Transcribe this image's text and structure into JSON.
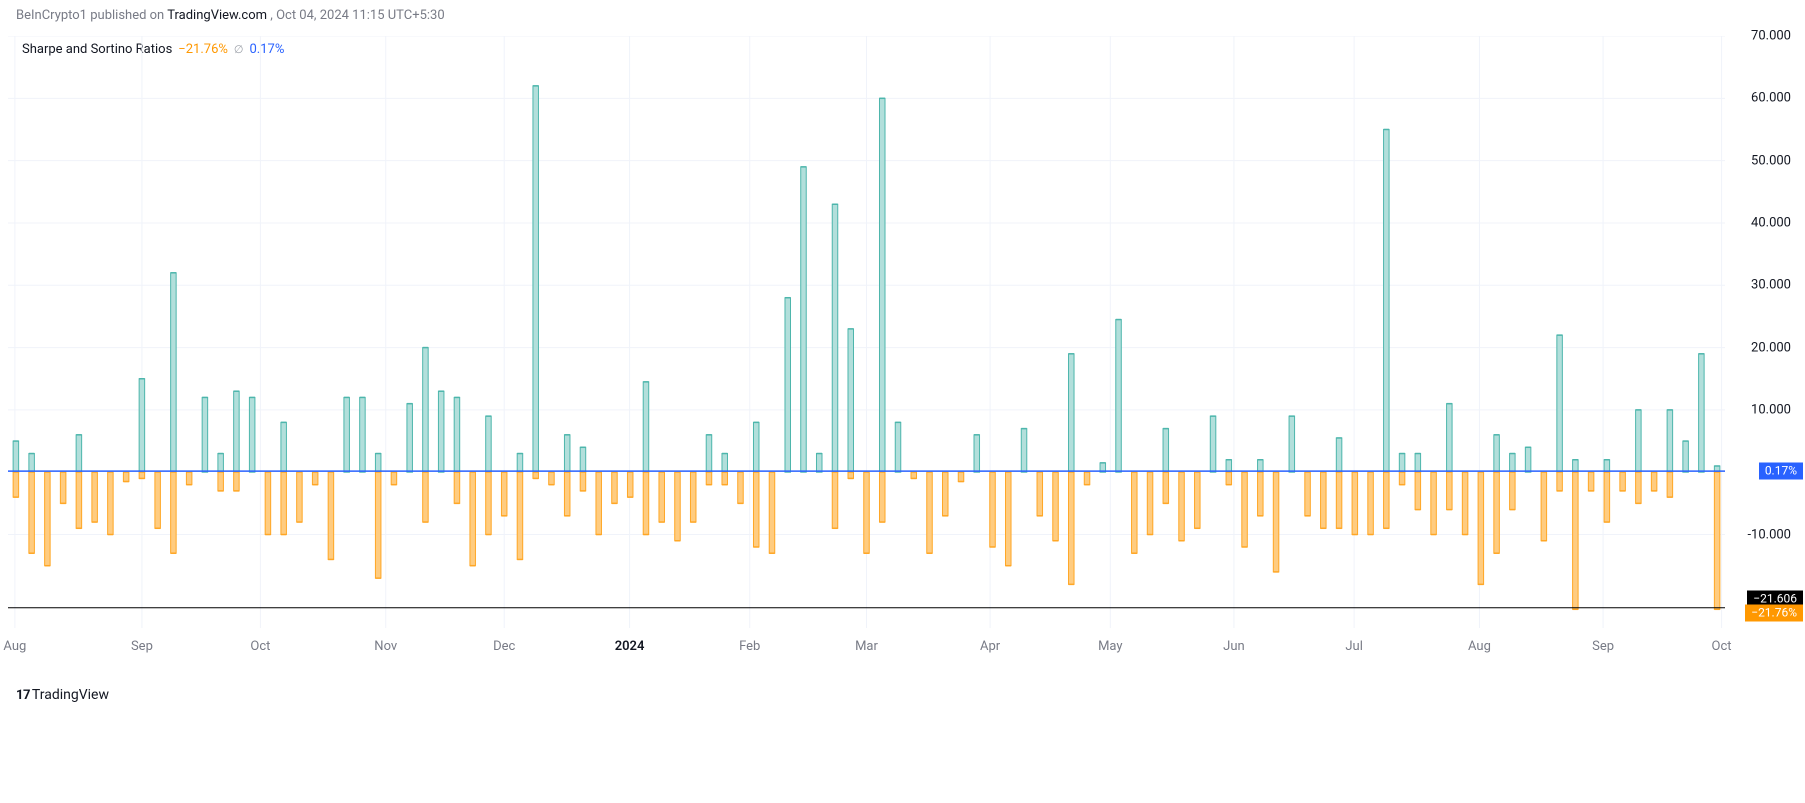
{
  "header": {
    "publisher": "BeInCrypto1",
    "published_on": " published on ",
    "source": "TradingView.com",
    "timestamp": ", Oct 04, 2024 11:15 UTC+5:30"
  },
  "legend": {
    "title": "Sharpe and Sortino Ratios",
    "value1": "−21.76%",
    "empty": "∅",
    "value2": "0.17%"
  },
  "brand": {
    "glyph": "17",
    "text": " TradingView"
  },
  "chart": {
    "type": "bar",
    "background": "#ffffff",
    "grid_color": "#f0f3fa",
    "pos_fill": "#b2dfdb",
    "pos_stroke": "#4db6ac",
    "neg_fill": "#ffcc80",
    "neg_stroke": "#ffa726",
    "zero_line_color": "#2962ff",
    "black_line_color": "#000000",
    "ylim": [
      -25,
      70
    ],
    "yticks": [
      70,
      60,
      50,
      40,
      30,
      20,
      10,
      -10
    ],
    "zero_value": 0.17,
    "black_line_value": -21.76,
    "badges": [
      {
        "text": "0.17%",
        "y": 0.17,
        "bg": "#2962ff"
      },
      {
        "text": "−21.606",
        "y": -20.3,
        "bg": "#000000"
      },
      {
        "text": "−21.76%",
        "y": -22.6,
        "bg": "#ff9800"
      }
    ],
    "xlabels": [
      {
        "t": 0.004,
        "label": "Aug"
      },
      {
        "t": 0.078,
        "label": "Sep"
      },
      {
        "t": 0.147,
        "label": "Oct"
      },
      {
        "t": 0.22,
        "label": "Nov"
      },
      {
        "t": 0.289,
        "label": "Dec"
      },
      {
        "t": 0.362,
        "label": "2024",
        "bold": true
      },
      {
        "t": 0.432,
        "label": "Feb"
      },
      {
        "t": 0.5,
        "label": "Mar"
      },
      {
        "t": 0.572,
        "label": "Apr"
      },
      {
        "t": 0.642,
        "label": "May"
      },
      {
        "t": 0.714,
        "label": "Jun"
      },
      {
        "t": 0.784,
        "label": "Jul"
      },
      {
        "t": 0.857,
        "label": "Aug"
      },
      {
        "t": 0.929,
        "label": "Sep"
      },
      {
        "t": 0.998,
        "label": "Oct"
      }
    ],
    "bar_width_ratio": 0.35,
    "bars": [
      {
        "p": 5,
        "n": -4
      },
      {
        "p": 3,
        "n": -13
      },
      {
        "p": 0,
        "n": -15
      },
      {
        "p": 0,
        "n": -5
      },
      {
        "p": 6,
        "n": -9
      },
      {
        "p": 0,
        "n": -8
      },
      {
        "p": 0,
        "n": -10
      },
      {
        "p": 0,
        "n": -1.5
      },
      {
        "p": 15,
        "n": -1
      },
      {
        "p": 0,
        "n": -9
      },
      {
        "p": 32,
        "n": -13
      },
      {
        "p": 0,
        "n": -2
      },
      {
        "p": 12,
        "n": 0
      },
      {
        "p": 3,
        "n": -3
      },
      {
        "p": 13,
        "n": -3
      },
      {
        "p": 12,
        "n": 0
      },
      {
        "p": 0,
        "n": -10
      },
      {
        "p": 8,
        "n": -10
      },
      {
        "p": 0,
        "n": -8
      },
      {
        "p": 0,
        "n": -2
      },
      {
        "p": 0,
        "n": -14
      },
      {
        "p": 12,
        "n": 0
      },
      {
        "p": 12,
        "n": 0
      },
      {
        "p": 3,
        "n": -17
      },
      {
        "p": 0,
        "n": -2
      },
      {
        "p": 11,
        "n": 0
      },
      {
        "p": 20,
        "n": -8
      },
      {
        "p": 13,
        "n": 0
      },
      {
        "p": 12,
        "n": -5
      },
      {
        "p": 0,
        "n": -15
      },
      {
        "p": 9,
        "n": -10
      },
      {
        "p": 0,
        "n": -7
      },
      {
        "p": 3,
        "n": -14
      },
      {
        "p": 62,
        "n": -1
      },
      {
        "p": 0,
        "n": -2
      },
      {
        "p": 6,
        "n": -7
      },
      {
        "p": 4,
        "n": -3
      },
      {
        "p": 0,
        "n": -10
      },
      {
        "p": 0,
        "n": -5
      },
      {
        "p": 0,
        "n": -4
      },
      {
        "p": 14.5,
        "n": -10
      },
      {
        "p": 0,
        "n": -8
      },
      {
        "p": 0,
        "n": -11
      },
      {
        "p": 0,
        "n": -8
      },
      {
        "p": 6,
        "n": -2
      },
      {
        "p": 3,
        "n": -2
      },
      {
        "p": 0,
        "n": -5
      },
      {
        "p": 8,
        "n": -12
      },
      {
        "p": 0,
        "n": -13
      },
      {
        "p": 28,
        "n": 0
      },
      {
        "p": 49,
        "n": 0
      },
      {
        "p": 3,
        "n": 0
      },
      {
        "p": 43,
        "n": -9
      },
      {
        "p": 23,
        "n": -1
      },
      {
        "p": 0,
        "n": -13
      },
      {
        "p": 60,
        "n": -8
      },
      {
        "p": 8,
        "n": 0
      },
      {
        "p": 0,
        "n": -1
      },
      {
        "p": 0,
        "n": -13
      },
      {
        "p": 0,
        "n": -7
      },
      {
        "p": 0,
        "n": -1.5
      },
      {
        "p": 6,
        "n": 0
      },
      {
        "p": 0,
        "n": -12
      },
      {
        "p": 0,
        "n": -15
      },
      {
        "p": 7,
        "n": 0
      },
      {
        "p": 0,
        "n": -7
      },
      {
        "p": 0,
        "n": -11
      },
      {
        "p": 19,
        "n": -18
      },
      {
        "p": 0,
        "n": -2
      },
      {
        "p": 1.5,
        "n": 0
      },
      {
        "p": 24.5,
        "n": 0
      },
      {
        "p": 0,
        "n": -13
      },
      {
        "p": 0,
        "n": -10
      },
      {
        "p": 7,
        "n": -5
      },
      {
        "p": 0,
        "n": -11
      },
      {
        "p": 0,
        "n": -9
      },
      {
        "p": 9,
        "n": 0
      },
      {
        "p": 2,
        "n": -2
      },
      {
        "p": 0,
        "n": -12
      },
      {
        "p": 2,
        "n": -7
      },
      {
        "p": 0,
        "n": -16
      },
      {
        "p": 9,
        "n": 0
      },
      {
        "p": 0,
        "n": -7
      },
      {
        "p": 0,
        "n": -9
      },
      {
        "p": 5.5,
        "n": -9
      },
      {
        "p": 0,
        "n": -10
      },
      {
        "p": 0,
        "n": -10
      },
      {
        "p": 55,
        "n": -9
      },
      {
        "p": 3,
        "n": -2
      },
      {
        "p": 3,
        "n": -6
      },
      {
        "p": 0,
        "n": -10
      },
      {
        "p": 11,
        "n": -6
      },
      {
        "p": 0,
        "n": -10
      },
      {
        "p": 0,
        "n": -18
      },
      {
        "p": 6,
        "n": -13
      },
      {
        "p": 3,
        "n": -6
      },
      {
        "p": 4,
        "n": 0
      },
      {
        "p": 0,
        "n": -11
      },
      {
        "p": 22,
        "n": -3
      },
      {
        "p": 2,
        "n": -22
      },
      {
        "p": 0,
        "n": -3
      },
      {
        "p": 2,
        "n": -8
      },
      {
        "p": 0,
        "n": -3
      },
      {
        "p": 10,
        "n": -5
      },
      {
        "p": 0,
        "n": -3
      },
      {
        "p": 10,
        "n": -4
      },
      {
        "p": 5,
        "n": 0
      },
      {
        "p": 19,
        "n": 0
      },
      {
        "p": 1,
        "n": -22
      }
    ]
  }
}
